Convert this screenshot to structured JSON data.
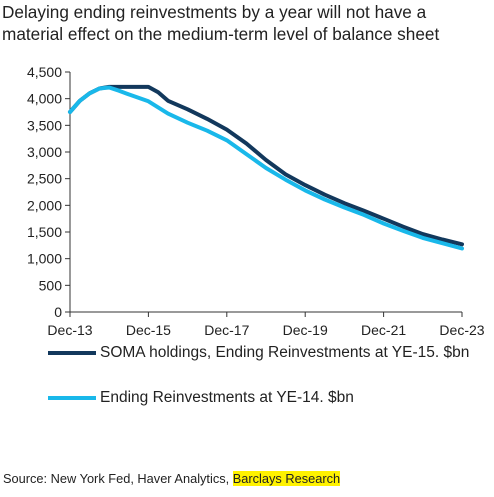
{
  "title_lines": [
    "Delaying ending reinvestments by a year will not have a",
    "material effect on the medium-term level of balance sheet"
  ],
  "source": {
    "prefix": "Source: New York Fed, Haver Analytics, ",
    "highlight": "Barclays Research"
  },
  "colors": {
    "series_dark": "#12385c",
    "series_light": "#19b8ea",
    "axis": "#333333",
    "highlight": "#fff200"
  },
  "chart_data": {
    "type": "line",
    "title": "",
    "xlabel": "",
    "ylabel": "",
    "ylim": [
      0,
      4500
    ],
    "yticks": [
      0,
      500,
      1000,
      1500,
      2000,
      2500,
      3000,
      3500,
      4000,
      4500
    ],
    "ytick_labels": [
      "0",
      "500",
      "1,000",
      "1,500",
      "2,000",
      "2,500",
      "3,000",
      "3,500",
      "4,000",
      "4,500"
    ],
    "xlim": [
      "2013-12",
      "2023-12"
    ],
    "xticks": [
      "2013-12",
      "2015-12",
      "2017-12",
      "2019-12",
      "2021-12",
      "2023-12"
    ],
    "xtick_labels": [
      "Dec-13",
      "Dec-15",
      "Dec-17",
      "Dec-19",
      "Dec-21",
      "Dec-23"
    ],
    "grid": false,
    "legend_position": "bottom",
    "series": [
      {
        "name": "SOMA holdings, Ending Reinvestments at YE-15. $bn",
        "color": "#12385c",
        "points": [
          [
            "2013-12",
            3750
          ],
          [
            "2014-03",
            3960
          ],
          [
            "2014-06",
            4100
          ],
          [
            "2014-09",
            4190
          ],
          [
            "2014-12",
            4220
          ],
          [
            "2015-06",
            4220
          ],
          [
            "2015-12",
            4220
          ],
          [
            "2016-03",
            4120
          ],
          [
            "2016-06",
            3960
          ],
          [
            "2016-12",
            3800
          ],
          [
            "2017-06",
            3620
          ],
          [
            "2017-12",
            3420
          ],
          [
            "2018-06",
            3160
          ],
          [
            "2018-12",
            2850
          ],
          [
            "2019-06",
            2580
          ],
          [
            "2019-12",
            2380
          ],
          [
            "2020-06",
            2200
          ],
          [
            "2020-12",
            2040
          ],
          [
            "2021-06",
            1900
          ],
          [
            "2021-12",
            1750
          ],
          [
            "2022-06",
            1600
          ],
          [
            "2022-12",
            1460
          ],
          [
            "2023-06",
            1360
          ],
          [
            "2023-12",
            1270
          ]
        ]
      },
      {
        "name": "Ending Reinvestments at YE-14. $bn",
        "color": "#19b8ea",
        "points": [
          [
            "2013-12",
            3750
          ],
          [
            "2014-03",
            3960
          ],
          [
            "2014-06",
            4100
          ],
          [
            "2014-09",
            4190
          ],
          [
            "2014-12",
            4210
          ],
          [
            "2015-03",
            4150
          ],
          [
            "2015-06",
            4080
          ],
          [
            "2015-12",
            3950
          ],
          [
            "2016-06",
            3720
          ],
          [
            "2016-12",
            3550
          ],
          [
            "2017-06",
            3400
          ],
          [
            "2017-12",
            3220
          ],
          [
            "2018-06",
            2960
          ],
          [
            "2018-12",
            2700
          ],
          [
            "2019-06",
            2480
          ],
          [
            "2019-12",
            2280
          ],
          [
            "2020-06",
            2110
          ],
          [
            "2020-12",
            1960
          ],
          [
            "2021-06",
            1820
          ],
          [
            "2021-12",
            1660
          ],
          [
            "2022-06",
            1520
          ],
          [
            "2022-12",
            1390
          ],
          [
            "2023-06",
            1290
          ],
          [
            "2023-12",
            1190
          ]
        ]
      }
    ]
  }
}
